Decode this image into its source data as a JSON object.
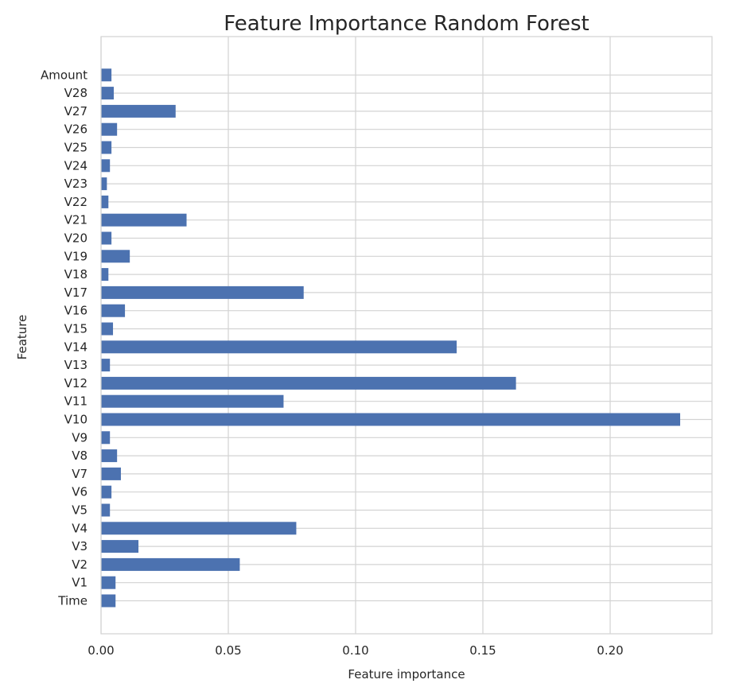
{
  "chart_data": {
    "type": "bar",
    "orientation": "horizontal",
    "title": "Feature Importance Random Forest",
    "xlabel": "Feature importance",
    "ylabel": "Feature",
    "xlim": [
      0,
      0.24
    ],
    "xticks": [
      0.0,
      0.05,
      0.1,
      0.15,
      0.2
    ],
    "xtick_labels": [
      "0.00",
      "0.05",
      "0.10",
      "0.15",
      "0.20"
    ],
    "grid": true,
    "bar_color": "#4c72b0",
    "categories": [
      "Time",
      "V1",
      "V2",
      "V3",
      "V4",
      "V5",
      "V6",
      "V7",
      "V8",
      "V9",
      "V10",
      "V11",
      "V12",
      "V13",
      "V14",
      "V15",
      "V16",
      "V17",
      "V18",
      "V19",
      "V20",
      "V21",
      "V22",
      "V23",
      "V24",
      "V25",
      "V26",
      "V27",
      "V28",
      "Amount"
    ],
    "values": [
      0.0057,
      0.0057,
      0.0545,
      0.0147,
      0.0767,
      0.0035,
      0.0041,
      0.0078,
      0.0063,
      0.0035,
      0.2275,
      0.0717,
      0.163,
      0.0035,
      0.1397,
      0.0047,
      0.0094,
      0.0796,
      0.0029,
      0.0113,
      0.0041,
      0.0336,
      0.0029,
      0.0023,
      0.0035,
      0.0041,
      0.0063,
      0.0293,
      0.005,
      0.0041
    ]
  }
}
